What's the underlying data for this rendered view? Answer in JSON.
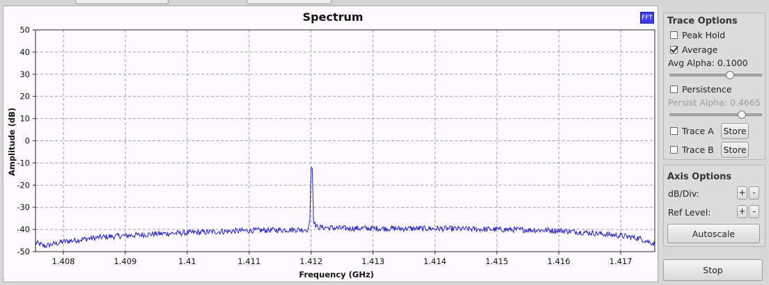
{
  "chart_data": {
    "type": "line",
    "title": "Spectrum",
    "xlabel": "Frequency (GHz)",
    "ylabel": "Amplitude (dB)",
    "xlim": [
      1.40755,
      1.41755
    ],
    "ylim": [
      -50,
      50
    ],
    "xticks": [
      "1.408",
      "1.409",
      "1.41",
      "1.411",
      "1.412",
      "1.413",
      "1.414",
      "1.415",
      "1.416",
      "1.417"
    ],
    "xtick_values": [
      1.408,
      1.409,
      1.41,
      1.411,
      1.412,
      1.413,
      1.414,
      1.415,
      1.416,
      1.417
    ],
    "yticks": [
      50,
      40,
      30,
      20,
      10,
      0,
      -10,
      -20,
      -30,
      -40,
      -50
    ],
    "grid": true,
    "series": [
      {
        "color": "#2020c8",
        "points": [
          [
            1.40755,
            -46.0
          ],
          [
            1.4077,
            -47.5
          ],
          [
            1.408,
            -45.5
          ],
          [
            1.4083,
            -44.5
          ],
          [
            1.4086,
            -43.5
          ],
          [
            1.409,
            -42.8
          ],
          [
            1.4095,
            -42.0
          ],
          [
            1.41,
            -41.5
          ],
          [
            1.4105,
            -41.0
          ],
          [
            1.411,
            -40.5
          ],
          [
            1.4115,
            -40.2
          ],
          [
            1.41195,
            -40.0
          ],
          [
            1.41198,
            -36.0
          ],
          [
            1.412,
            -12.0
          ],
          [
            1.41202,
            -12.5
          ],
          [
            1.41204,
            -37.0
          ],
          [
            1.4121,
            -39.0
          ],
          [
            1.4125,
            -39.5
          ],
          [
            1.413,
            -39.5
          ],
          [
            1.4135,
            -39.6
          ],
          [
            1.414,
            -39.6
          ],
          [
            1.4145,
            -39.8
          ],
          [
            1.415,
            -40.0
          ],
          [
            1.4155,
            -40.2
          ],
          [
            1.416,
            -40.5
          ],
          [
            1.4165,
            -41.5
          ],
          [
            1.417,
            -42.8
          ],
          [
            1.4173,
            -44.0
          ],
          [
            1.41755,
            -46.5
          ]
        ],
        "noise_db": 1.3
      }
    ]
  },
  "badge": "FFT",
  "trace_options": {
    "title": "Trace Options",
    "peak_hold": {
      "label": "Peak Hold",
      "checked": false
    },
    "average": {
      "label": "Average",
      "checked": true
    },
    "avg_alpha": {
      "label": "Avg Alpha:",
      "value": "0.1000",
      "level": 0.66
    },
    "persistence": {
      "label": "Persistence",
      "checked": false
    },
    "persist_alpha": {
      "label": "Persist Alpha:",
      "value": "0.4665",
      "level": 0.8
    },
    "trace_a": {
      "label": "Trace A",
      "button": "Store",
      "checked": false
    },
    "trace_b": {
      "label": "Trace B",
      "button": "Store",
      "checked": false
    }
  },
  "axis_options": {
    "title": "Axis Options",
    "db_div": {
      "label": "dB/Div:",
      "plus": "+",
      "minus": "-"
    },
    "ref_level": {
      "label": "Ref Level:",
      "plus": "+",
      "minus": "-"
    },
    "autoscale": "Autoscale"
  },
  "stop_button": "Stop"
}
